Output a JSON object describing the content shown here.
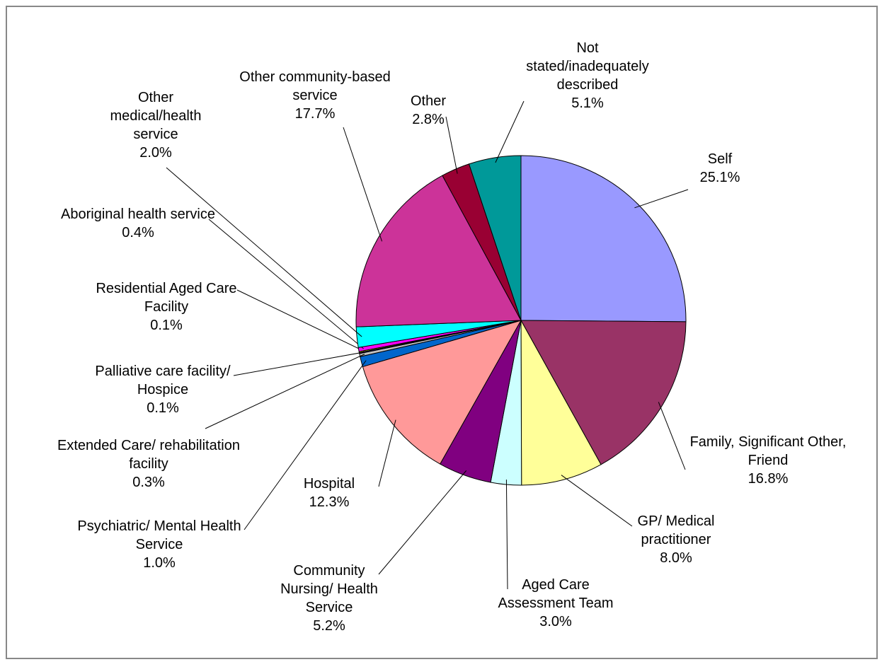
{
  "chart_data": {
    "type": "pie",
    "categories": [
      "Self",
      "Family, Significant Other, Friend",
      "GP/ Medical practitioner",
      "Aged Care Assessment Team",
      "Community Nursing/ Health Service",
      "Hospital",
      "Psychiatric/ Mental Health Service",
      "Extended Care/ rehabilitation facility",
      "Palliative care facility/ Hospice",
      "Residential Aged Care Facility",
      "Aboriginal health service",
      "Other medical/health service",
      "Other community-based service",
      "Other",
      "Not stated/inadequately described"
    ],
    "values": [
      25.1,
      16.8,
      8.0,
      3.0,
      5.2,
      12.3,
      1.0,
      0.3,
      0.1,
      0.1,
      0.4,
      2.0,
      17.7,
      2.8,
      5.1
    ],
    "value_labels": [
      "25.1%",
      "16.8%",
      "8.0%",
      "3.0%",
      "5.2%",
      "12.3%",
      "1.0%",
      "0.3%",
      "0.1%",
      "0.1%",
      "0.4%",
      "2.0%",
      "17.7%",
      "2.8%",
      "5.1%"
    ],
    "colors": [
      "#9999ff",
      "#993366",
      "#ffff99",
      "#ccffff",
      "#800080",
      "#ff9999",
      "#0066cc",
      "#c0c0c0",
      "#000080",
      "#ffff00",
      "#ff00ff",
      "#00ffff",
      "#cc3399",
      "#990033",
      "#009999"
    ]
  }
}
